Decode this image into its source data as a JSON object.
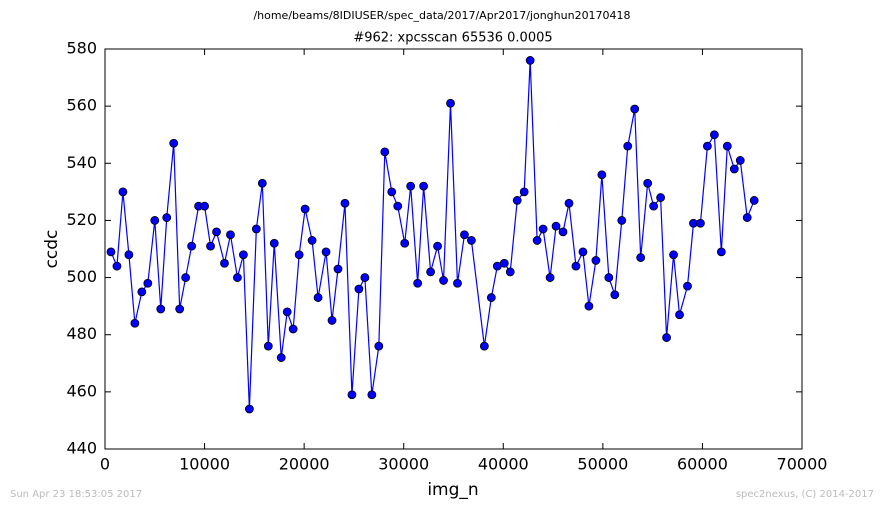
{
  "chart_data": {
    "type": "line",
    "suptitle": "/home/beams/8IDIUSER/spec_data/2017/Apr2017/jonghun20170418",
    "title": "#962: xpcsscan 65536 0.0005",
    "xlabel": "img_n",
    "ylabel": "ccdc",
    "annotations": [
      "Sun Apr 23 18:53:05 2017",
      "spec2nexus, (C) 2014-2017"
    ],
    "x": [
      600,
      1200,
      1800,
      2400,
      3000,
      3700,
      4300,
      5000,
      5600,
      6200,
      6900,
      7500,
      8100,
      8700,
      9400,
      10000,
      10600,
      11200,
      12000,
      12600,
      13300,
      13900,
      14500,
      15200,
      15800,
      16400,
      17000,
      17700,
      18300,
      18900,
      19500,
      20100,
      20800,
      21400,
      22200,
      22800,
      23400,
      24100,
      24800,
      25500,
      26100,
      26800,
      27500,
      28100,
      28800,
      29400,
      30100,
      30700,
      31400,
      32000,
      32700,
      33400,
      34000,
      34700,
      35400,
      36100,
      36800,
      38100,
      38800,
      39400,
      40100,
      40700,
      41400,
      42100,
      42700,
      43400,
      44000,
      44700,
      45300,
      46000,
      46600,
      47300,
      48000,
      48600,
      49300,
      49900,
      50600,
      51200,
      51900,
      52500,
      53200,
      53800,
      54500,
      55100,
      55800,
      56400,
      57100,
      57700,
      58500,
      59100,
      59800,
      60500,
      61200,
      61900,
      62500,
      63200,
      63800,
      64500,
      65200
    ],
    "series": [
      {
        "name": "ccdc",
        "color": "#0000ff",
        "marker_edge": "#000000",
        "values": [
          509,
          504,
          530,
          508,
          484,
          495,
          498,
          520,
          489,
          521,
          547,
          489,
          500,
          511,
          525,
          525,
          511,
          516,
          505,
          515,
          500,
          508,
          454,
          517,
          533,
          476,
          512,
          472,
          488,
          482,
          508,
          524,
          513,
          493,
          509,
          485,
          503,
          526,
          459,
          496,
          500,
          459,
          476,
          544,
          530,
          525,
          512,
          532,
          498,
          532,
          502,
          511,
          499,
          561,
          498,
          515,
          513,
          476,
          493,
          504,
          505,
          502,
          527,
          530,
          576,
          513,
          517,
          500,
          518,
          516,
          526,
          504,
          509,
          490,
          506,
          536,
          500,
          494,
          520,
          546,
          559,
          507,
          533,
          525,
          528,
          479,
          508,
          487,
          497,
          519,
          519,
          546,
          550,
          509,
          546,
          538,
          541,
          521,
          527
        ]
      }
    ],
    "xlim": [
      0,
      70000
    ],
    "xticks": [
      0,
      10000,
      20000,
      30000,
      40000,
      50000,
      60000,
      70000
    ],
    "ylim": [
      440,
      580
    ],
    "yticks": [
      440,
      460,
      480,
      500,
      520,
      540,
      560,
      580
    ],
    "grid": false
  }
}
